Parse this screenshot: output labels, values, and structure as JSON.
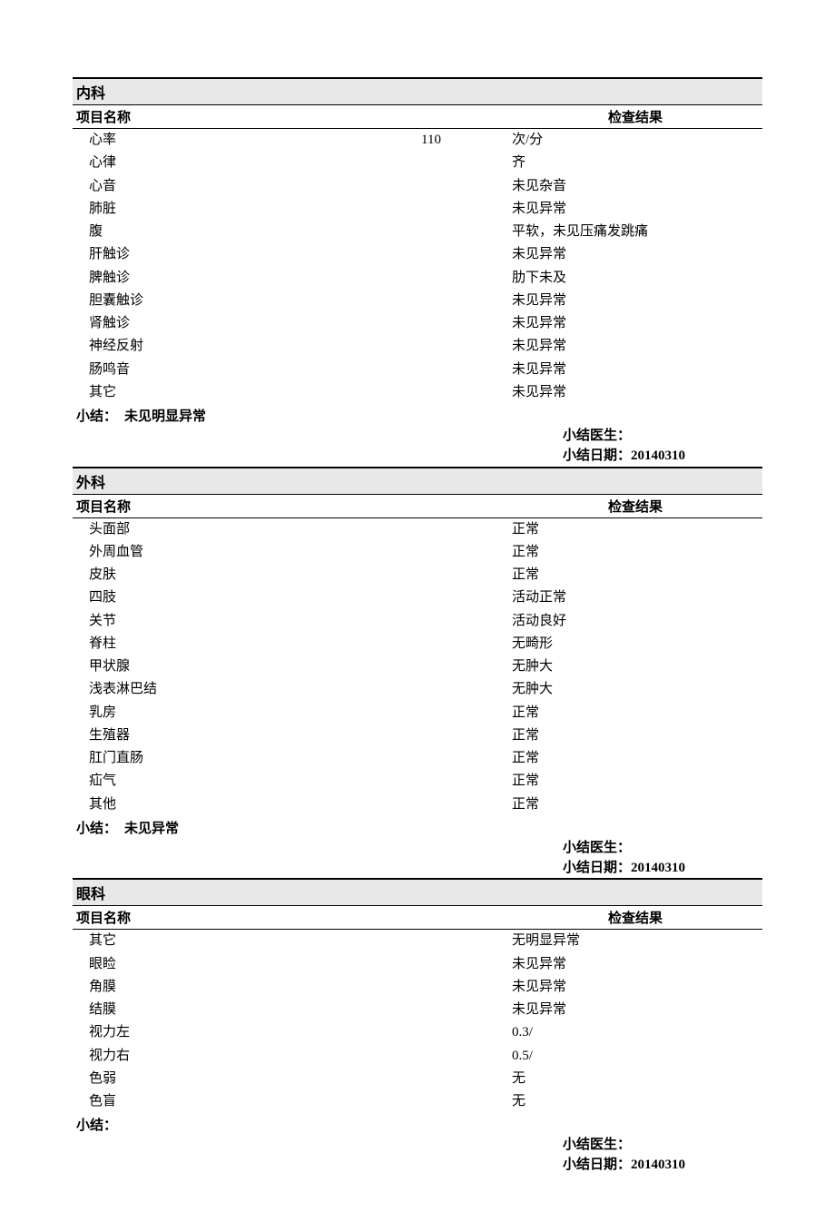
{
  "labels": {
    "item_name": "项目名称",
    "result": "检查结果",
    "summary": "小结：",
    "doctor": "小结医生：",
    "date": "小结日期："
  },
  "sections": [
    {
      "title": "内科",
      "rows": [
        {
          "name": "心率",
          "mid": "110",
          "result": "次/分"
        },
        {
          "name": "心律",
          "mid": "",
          "result": "齐"
        },
        {
          "name": "心音",
          "mid": "",
          "result": "未见杂音"
        },
        {
          "name": "肺脏",
          "mid": "",
          "result": "未见异常"
        },
        {
          "name": "腹",
          "mid": "",
          "result": "平软，未见压痛发跳痛"
        },
        {
          "name": "肝触诊",
          "mid": "",
          "result": "未见异常"
        },
        {
          "name": "脾触诊",
          "mid": "",
          "result": "肋下未及"
        },
        {
          "name": "胆囊触诊",
          "mid": "",
          "result": "未见异常"
        },
        {
          "name": "肾触诊",
          "mid": "",
          "result": "未见异常"
        },
        {
          "name": "神经反射",
          "mid": "",
          "result": "未见异常"
        },
        {
          "name": "肠鸣音",
          "mid": "",
          "result": "未见异常"
        },
        {
          "name": "其它",
          "mid": "",
          "result": "未见异常"
        }
      ],
      "summary": "未见明显异常",
      "doctor": "",
      "date": "20140310"
    },
    {
      "title": "外科",
      "rows": [
        {
          "name": "头面部",
          "mid": "",
          "result": "正常"
        },
        {
          "name": "外周血管",
          "mid": "",
          "result": "正常"
        },
        {
          "name": "皮肤",
          "mid": "",
          "result": "正常"
        },
        {
          "name": "四肢",
          "mid": "",
          "result": "活动正常"
        },
        {
          "name": "关节",
          "mid": "",
          "result": "活动良好"
        },
        {
          "name": "脊柱",
          "mid": "",
          "result": "无畸形"
        },
        {
          "name": "甲状腺",
          "mid": "",
          "result": "无肿大"
        },
        {
          "name": "浅表淋巴结",
          "mid": "",
          "result": "无肿大"
        },
        {
          "name": "乳房",
          "mid": "",
          "result": "正常"
        },
        {
          "name": "生殖器",
          "mid": "",
          "result": "正常"
        },
        {
          "name": "肛门直肠",
          "mid": "",
          "result": "正常"
        },
        {
          "name": "疝气",
          "mid": "",
          "result": "正常"
        },
        {
          "name": "其他",
          "mid": "",
          "result": "正常"
        }
      ],
      "summary": "未见异常",
      "doctor": "",
      "date": "20140310"
    },
    {
      "title": "眼科",
      "rows": [
        {
          "name": "其它",
          "mid": "",
          "result": "无明显异常"
        },
        {
          "name": "眼睑",
          "mid": "",
          "result": "未见异常"
        },
        {
          "name": "角膜",
          "mid": "",
          "result": "未见异常"
        },
        {
          "name": "结膜",
          "mid": "",
          "result": "未见异常"
        },
        {
          "name": "视力左",
          "mid": "",
          "result": "0.3/"
        },
        {
          "name": "视力右",
          "mid": "",
          "result": "0.5/"
        },
        {
          "name": "色弱",
          "mid": "",
          "result": "无"
        },
        {
          "name": "色盲",
          "mid": "",
          "result": "无"
        }
      ],
      "summary": "",
      "doctor": "",
      "date": "20140310"
    }
  ]
}
